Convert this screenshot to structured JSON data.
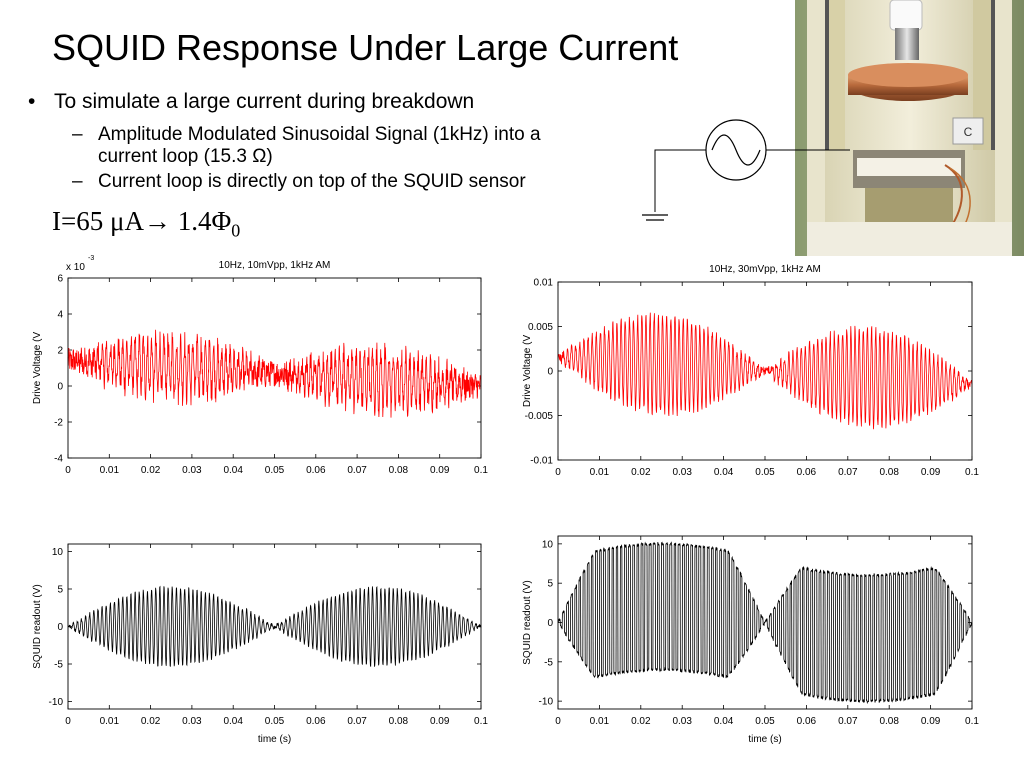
{
  "slide": {
    "title": "SQUID Response Under Large Current",
    "bullet": "To simulate a large current during breakdown",
    "sub1_line1": "Amplitude Modulated Sinusoidal Signal (1kHz) into a",
    "sub1_line2_pre": "current loop (15.3 ",
    "sub1_omega": "Ω",
    "sub1_line2_post": ")",
    "sub2": "Current loop is directly on top of the SQUID sensor",
    "eq_main": "I=65 μA→ 1.4Φ",
    "eq_sub": "0",
    "photo_label": "C"
  },
  "colors": {
    "drive": "#ff0000",
    "squid": "#000000",
    "axis": "#000000"
  },
  "chart_data": [
    {
      "type": "line",
      "title": "10Hz, 10mVpp, 1kHz AM",
      "ylabel": "Drive Voltage (V",
      "xlabel": "",
      "exponent_label": "x 10",
      "exponent": "-3",
      "xlim": [
        0,
        0.1
      ],
      "ylim": [
        -4,
        6
      ],
      "xticks": [
        "0",
        "0.01",
        "0.02",
        "0.03",
        "0.04",
        "0.05",
        "0.06",
        "0.07",
        "0.08",
        "0.09",
        "0.1"
      ],
      "yticks": [
        "-4",
        "-2",
        "0",
        "2",
        "4",
        "6"
      ],
      "series": [
        {
          "color": "#ff0000",
          "carrier_hz": 1000,
          "envelope_hz": 10,
          "envelope_amplitude": 1.5,
          "offset_start": 1.4,
          "offset_end": 0,
          "noise": 0.7
        }
      ]
    },
    {
      "type": "line",
      "title": "10Hz, 30mVpp, 1kHz AM",
      "ylabel": "Drive Voltage (V",
      "xlabel": "",
      "xlim": [
        0,
        0.1
      ],
      "ylim": [
        -0.01,
        0.01
      ],
      "xticks": [
        "0",
        "0.01",
        "0.02",
        "0.03",
        "0.04",
        "0.05",
        "0.06",
        "0.07",
        "0.08",
        "0.09",
        "0.1"
      ],
      "yticks": [
        "-0.01",
        "-0.005",
        "0",
        "0.005",
        "0.01"
      ],
      "series": [
        {
          "color": "#ff0000",
          "carrier_hz": 1000,
          "envelope_hz": 10,
          "envelope_amplitude": 0.0055,
          "offset_start": 0.0015,
          "offset_end": -0.0015,
          "noise": 0.0005
        }
      ]
    },
    {
      "type": "line",
      "title": "",
      "ylabel": "SQUID readout (V)",
      "xlabel": "time (s)",
      "xlim": [
        0,
        0.1
      ],
      "ylim": [
        -11,
        11
      ],
      "xticks": [
        "0",
        "0.01",
        "0.02",
        "0.03",
        "0.04",
        "0.05",
        "0.06",
        "0.07",
        "0.08",
        "0.09",
        "0.1"
      ],
      "yticks": [
        "-10",
        "-5",
        "0",
        "5",
        "10"
      ],
      "series": [
        {
          "color": "#000000",
          "carrier_hz": 1000,
          "envelope_hz": 10,
          "envelope_amplitude": 5.3,
          "offset_start": 0,
          "offset_end": 0,
          "noise": 0.25
        }
      ]
    },
    {
      "type": "line",
      "title": "",
      "ylabel": "SQUID readout (V)",
      "xlabel": "time (s)",
      "xlim": [
        0,
        0.1
      ],
      "ylim": [
        -11,
        11
      ],
      "xticks": [
        "0",
        "0.01",
        "0.02",
        "0.03",
        "0.04",
        "0.05",
        "0.06",
        "0.07",
        "0.08",
        "0.09",
        "0.1"
      ],
      "yticks": [
        "-10",
        "-5",
        "0",
        "5",
        "10"
      ],
      "series": [
        {
          "color": "#000000",
          "carrier_hz": 1000,
          "envelope_hz": 10,
          "envelope_amplitude": 15,
          "offset_start": 0,
          "offset_end": 0,
          "noise": 0.2,
          "clip": [
            -10.5,
            11
          ],
          "flux_jumps": true
        }
      ]
    }
  ]
}
